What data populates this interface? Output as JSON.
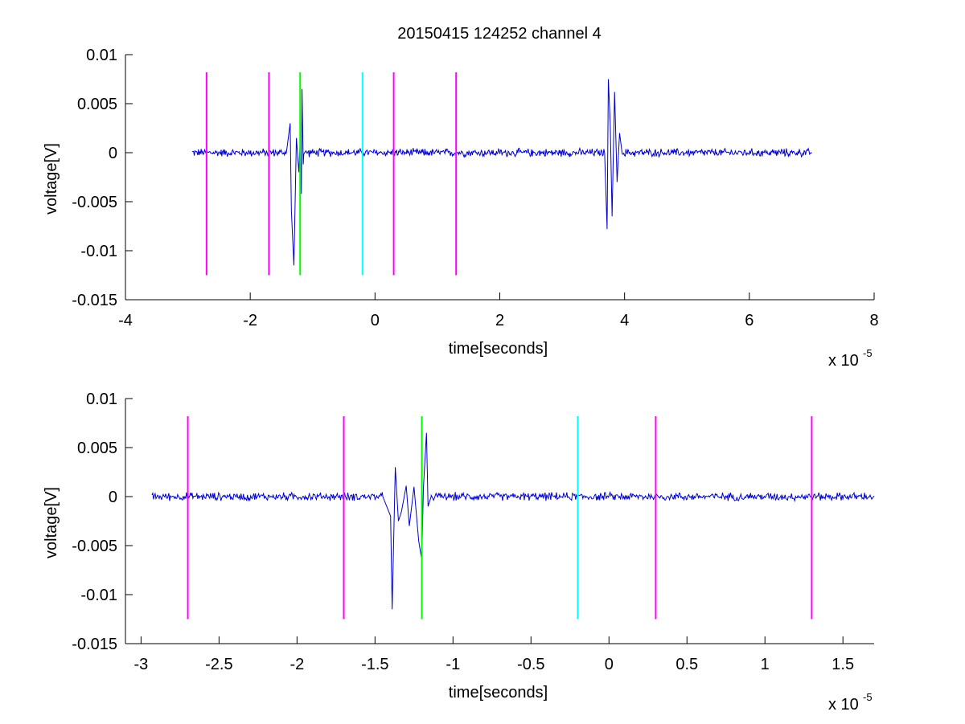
{
  "figure": {
    "title": "20150415 124252 channel 4"
  },
  "chart_data": [
    {
      "type": "line",
      "xlabel": "time[seconds]",
      "ylabel": "voltage[V]",
      "x_multiplier": {
        "base": "x 10",
        "exponent": "-5"
      },
      "xlim": [
        -4,
        8
      ],
      "ylim": [
        -0.015,
        0.01
      ],
      "x_ticks": [
        -4,
        -2,
        0,
        2,
        4,
        6,
        8
      ],
      "x_tick_labels": [
        "-4",
        "-2",
        "0",
        "2",
        "4",
        "6",
        "8"
      ],
      "y_ticks": [
        0.01,
        0.005,
        0,
        -0.005,
        -0.01,
        -0.015
      ],
      "y_tick_labels": [
        "0.01",
        "0.005",
        "0",
        "-0.005",
        "-0.01",
        "-0.015"
      ],
      "grid": false,
      "series": [
        {
          "color": "#0000cc",
          "x_range": [
            -2.93,
            7.0
          ],
          "baseline_noise_amplitude": 0.0005,
          "bursts": [
            {
              "x": [
                -1.42,
                -1.36,
                -1.34,
                -1.3,
                -1.26,
                -1.22,
                -1.2,
                -1.18,
                -1.17,
                -1.15
              ],
              "y": [
                0.0,
                0.003,
                -0.006,
                -0.0115,
                0.0015,
                -0.002,
                0.0012,
                -0.0042,
                0.0065,
                -0.0012
              ]
            },
            {
              "x": [
                3.68,
                3.72,
                3.74,
                3.77,
                3.8,
                3.84,
                3.88,
                3.92,
                3.96
              ],
              "y": [
                0.0,
                -0.0078,
                0.0075,
                0.003,
                -0.0065,
                0.0062,
                -0.003,
                0.002,
                0.0
              ]
            }
          ]
        }
      ],
      "markers": [
        {
          "x": -2.7,
          "color": "#ff00ff",
          "y_range": [
            -0.0125,
            0.0082
          ]
        },
        {
          "x": -1.7,
          "color": "#ff00ff",
          "y_range": [
            -0.0125,
            0.0082
          ]
        },
        {
          "x": -1.2,
          "color": "#00ff00",
          "y_range": [
            -0.0125,
            0.0082
          ]
        },
        {
          "x": -0.2,
          "color": "#00ffff",
          "y_range": [
            -0.0125,
            0.0082
          ]
        },
        {
          "x": 0.3,
          "color": "#ff00ff",
          "y_range": [
            -0.0125,
            0.0082
          ]
        },
        {
          "x": 1.3,
          "color": "#ff00ff",
          "y_range": [
            -0.0125,
            0.0082
          ]
        }
      ]
    },
    {
      "type": "line",
      "xlabel": "time[seconds]",
      "ylabel": "voltage[V]",
      "x_multiplier": {
        "base": "x 10",
        "exponent": "-5"
      },
      "xlim": [
        -3.1,
        1.7
      ],
      "ylim": [
        -0.015,
        0.01
      ],
      "x_ticks": [
        -3,
        -2.5,
        -2,
        -1.5,
        -1,
        -0.5,
        0,
        0.5,
        1,
        1.5
      ],
      "x_tick_labels": [
        "-3",
        "-2.5",
        "-2",
        "-1.5",
        "-1",
        "-0.5",
        "0",
        "0.5",
        "1",
        "1.5"
      ],
      "y_ticks": [
        0.01,
        0.005,
        0,
        -0.005,
        -0.01,
        -0.015
      ],
      "y_tick_labels": [
        "0.01",
        "0.005",
        "0",
        "-0.005",
        "-0.01",
        "-0.015"
      ],
      "grid": false,
      "series": [
        {
          "color": "#0000cc",
          "x_range": [
            -2.93,
            1.7
          ],
          "baseline_noise_amplitude": 0.0005,
          "bursts": [
            {
              "x": [
                -1.45,
                -1.4,
                -1.39,
                -1.37,
                -1.35,
                -1.33,
                -1.3,
                -1.28,
                -1.25,
                -1.22,
                -1.2,
                -1.19,
                -1.17,
                -1.16,
                -1.14
              ],
              "y": [
                0.0,
                -0.002,
                -0.0115,
                0.003,
                -0.0025,
                -0.0015,
                0.0011,
                -0.003,
                0.001,
                -0.0045,
                -0.0065,
                0.0008,
                0.0065,
                -0.001,
                0.0
              ]
            }
          ]
        }
      ],
      "markers": [
        {
          "x": -2.7,
          "color": "#ff00ff",
          "y_range": [
            -0.0125,
            0.0082
          ]
        },
        {
          "x": -1.7,
          "color": "#ff00ff",
          "y_range": [
            -0.0125,
            0.0082
          ]
        },
        {
          "x": -1.2,
          "color": "#00ff00",
          "y_range": [
            -0.0125,
            0.0082
          ]
        },
        {
          "x": -0.2,
          "color": "#00ffff",
          "y_range": [
            -0.0125,
            0.0082
          ]
        },
        {
          "x": 0.3,
          "color": "#ff00ff",
          "y_range": [
            -0.0125,
            0.0082
          ]
        },
        {
          "x": 1.3,
          "color": "#ff00ff",
          "y_range": [
            -0.0125,
            0.0082
          ]
        }
      ]
    }
  ]
}
